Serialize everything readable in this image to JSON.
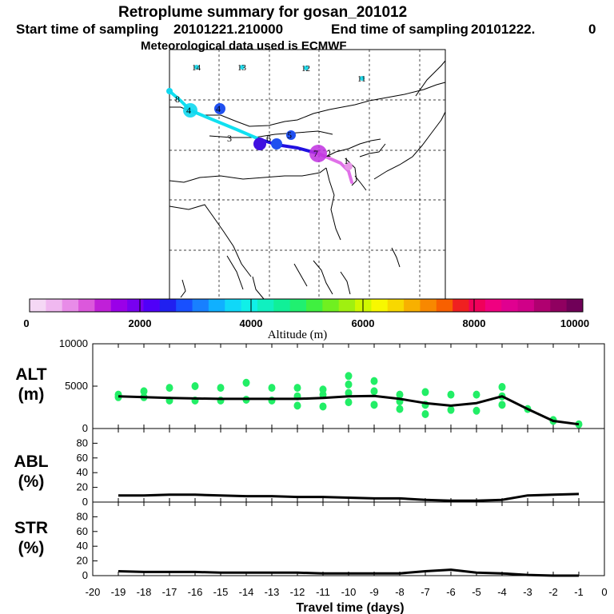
{
  "title": "Retroplume summary for gosan_201012",
  "sampling_line": {
    "start_label": "Start time of sampling",
    "start_value": "20101221.210000",
    "end_label": "End time of sampling",
    "end_value": "20101222.",
    "end_suffix": "0"
  },
  "met_line": "Meteorological data used is ECMWF",
  "map": {
    "top_labels": [
      "14",
      "13",
      "12",
      "11"
    ],
    "day_markers": [
      "1",
      "2",
      "3",
      "4",
      "4",
      "5",
      "6",
      "7",
      "8"
    ],
    "gridlines": "dashed"
  },
  "colorbar": {
    "ticks": [
      "0",
      "2000",
      "4000",
      "6000",
      "8000",
      "10000"
    ],
    "label": "Altitude (m)",
    "colors": [
      "#f5d8f5",
      "#f0b8f0",
      "#e88ce8",
      "#dc58dc",
      "#c020d8",
      "#9a00e8",
      "#7800f0",
      "#5000f8",
      "#2020f0",
      "#1850ff",
      "#1880ff",
      "#10b0ff",
      "#10d8f8",
      "#10f0e8",
      "#10f0c0",
      "#10f098",
      "#20f070",
      "#40f040",
      "#70f020",
      "#a0f010",
      "#d0f800",
      "#f8f800",
      "#f8d800",
      "#f8b000",
      "#f88800",
      "#f86000",
      "#f02020",
      "#f0005a",
      "#f00080",
      "#e00090",
      "#d00088",
      "#b00070",
      "#900060",
      "#700058"
    ]
  },
  "chart_data": [
    {
      "type": "line",
      "name": "ALT",
      "ylabel": "ALT",
      "yunit": "(m)",
      "ylim": [
        0,
        10000
      ],
      "yticks": [
        0,
        5000,
        10000
      ],
      "x": [
        -19,
        -18,
        -17,
        -16,
        -15,
        -14,
        -13,
        -12,
        -11,
        -10,
        -9,
        -8,
        -7,
        -6,
        -5,
        -4,
        -3,
        -2,
        -1
      ],
      "values": [
        3800,
        3700,
        3600,
        3550,
        3500,
        3500,
        3500,
        3500,
        3600,
        3800,
        3850,
        3500,
        3000,
        2700,
        3000,
        3800,
        2300,
        900,
        500
      ],
      "scatter_color": "#22ee66",
      "scatter_points": [
        [
          -19,
          4000
        ],
        [
          -19,
          3700
        ],
        [
          -18,
          4400
        ],
        [
          -18,
          3700
        ],
        [
          -17,
          4800
        ],
        [
          -17,
          3300
        ],
        [
          -16,
          5000
        ],
        [
          -16,
          3300
        ],
        [
          -15,
          4800
        ],
        [
          -15,
          3300
        ],
        [
          -14,
          5400
        ],
        [
          -14,
          3400
        ],
        [
          -13,
          4800
        ],
        [
          -13,
          3300
        ],
        [
          -12,
          4800
        ],
        [
          -12,
          3800
        ],
        [
          -12,
          2700
        ],
        [
          -11,
          4600
        ],
        [
          -11,
          4000
        ],
        [
          -11,
          2600
        ],
        [
          -10,
          6200
        ],
        [
          -10,
          5200
        ],
        [
          -10,
          4200
        ],
        [
          -10,
          3100
        ],
        [
          -9,
          5600
        ],
        [
          -9,
          4400
        ],
        [
          -9,
          2800
        ],
        [
          -8,
          4000
        ],
        [
          -8,
          3200
        ],
        [
          -8,
          2300
        ],
        [
          -7,
          4300
        ],
        [
          -7,
          2800
        ],
        [
          -7,
          1700
        ],
        [
          -6,
          4000
        ],
        [
          -6,
          2200
        ],
        [
          -5,
          4000
        ],
        [
          -5,
          2100
        ],
        [
          -4,
          4900
        ],
        [
          -4,
          3800
        ],
        [
          -4,
          2800
        ],
        [
          -3,
          2300
        ],
        [
          -2,
          1000
        ],
        [
          -2,
          900
        ],
        [
          -1,
          500
        ]
      ]
    },
    {
      "type": "line",
      "name": "ABL",
      "ylabel": "ABL",
      "yunit": "(%)",
      "ylim": [
        0,
        100
      ],
      "yticks": [
        0,
        20,
        40,
        60,
        80
      ],
      "x": [
        -19,
        -18,
        -17,
        -16,
        -15,
        -14,
        -13,
        -12,
        -11,
        -10,
        -9,
        -8,
        -7,
        -6,
        -5,
        -4,
        -3,
        -2,
        -1
      ],
      "values": [
        9,
        9,
        10,
        10,
        9,
        8,
        8,
        7,
        7,
        6,
        5,
        5,
        3,
        2,
        2,
        3,
        9,
        10,
        11
      ]
    },
    {
      "type": "line",
      "name": "STR",
      "ylabel": "STR",
      "yunit": "(%)",
      "ylim": [
        0,
        100
      ],
      "yticks": [
        0,
        20,
        40,
        60,
        80
      ],
      "x": [
        -19,
        -18,
        -17,
        -16,
        -15,
        -14,
        -13,
        -12,
        -11,
        -10,
        -9,
        -8,
        -7,
        -6,
        -5,
        -4,
        -3,
        -2,
        -1
      ],
      "values": [
        6,
        5,
        5,
        5,
        4,
        4,
        4,
        4,
        3,
        3,
        3,
        3,
        6,
        8,
        4,
        3,
        1,
        0,
        0
      ],
      "xlabel": "Travel time (days)",
      "xlim": [
        -20,
        0
      ],
      "xticks": [
        -20,
        -19,
        -18,
        -17,
        -16,
        -15,
        -14,
        -13,
        -12,
        -11,
        -10,
        -9,
        -8,
        -7,
        -6,
        -5,
        -4,
        -3,
        -2,
        -1,
        0
      ]
    }
  ]
}
